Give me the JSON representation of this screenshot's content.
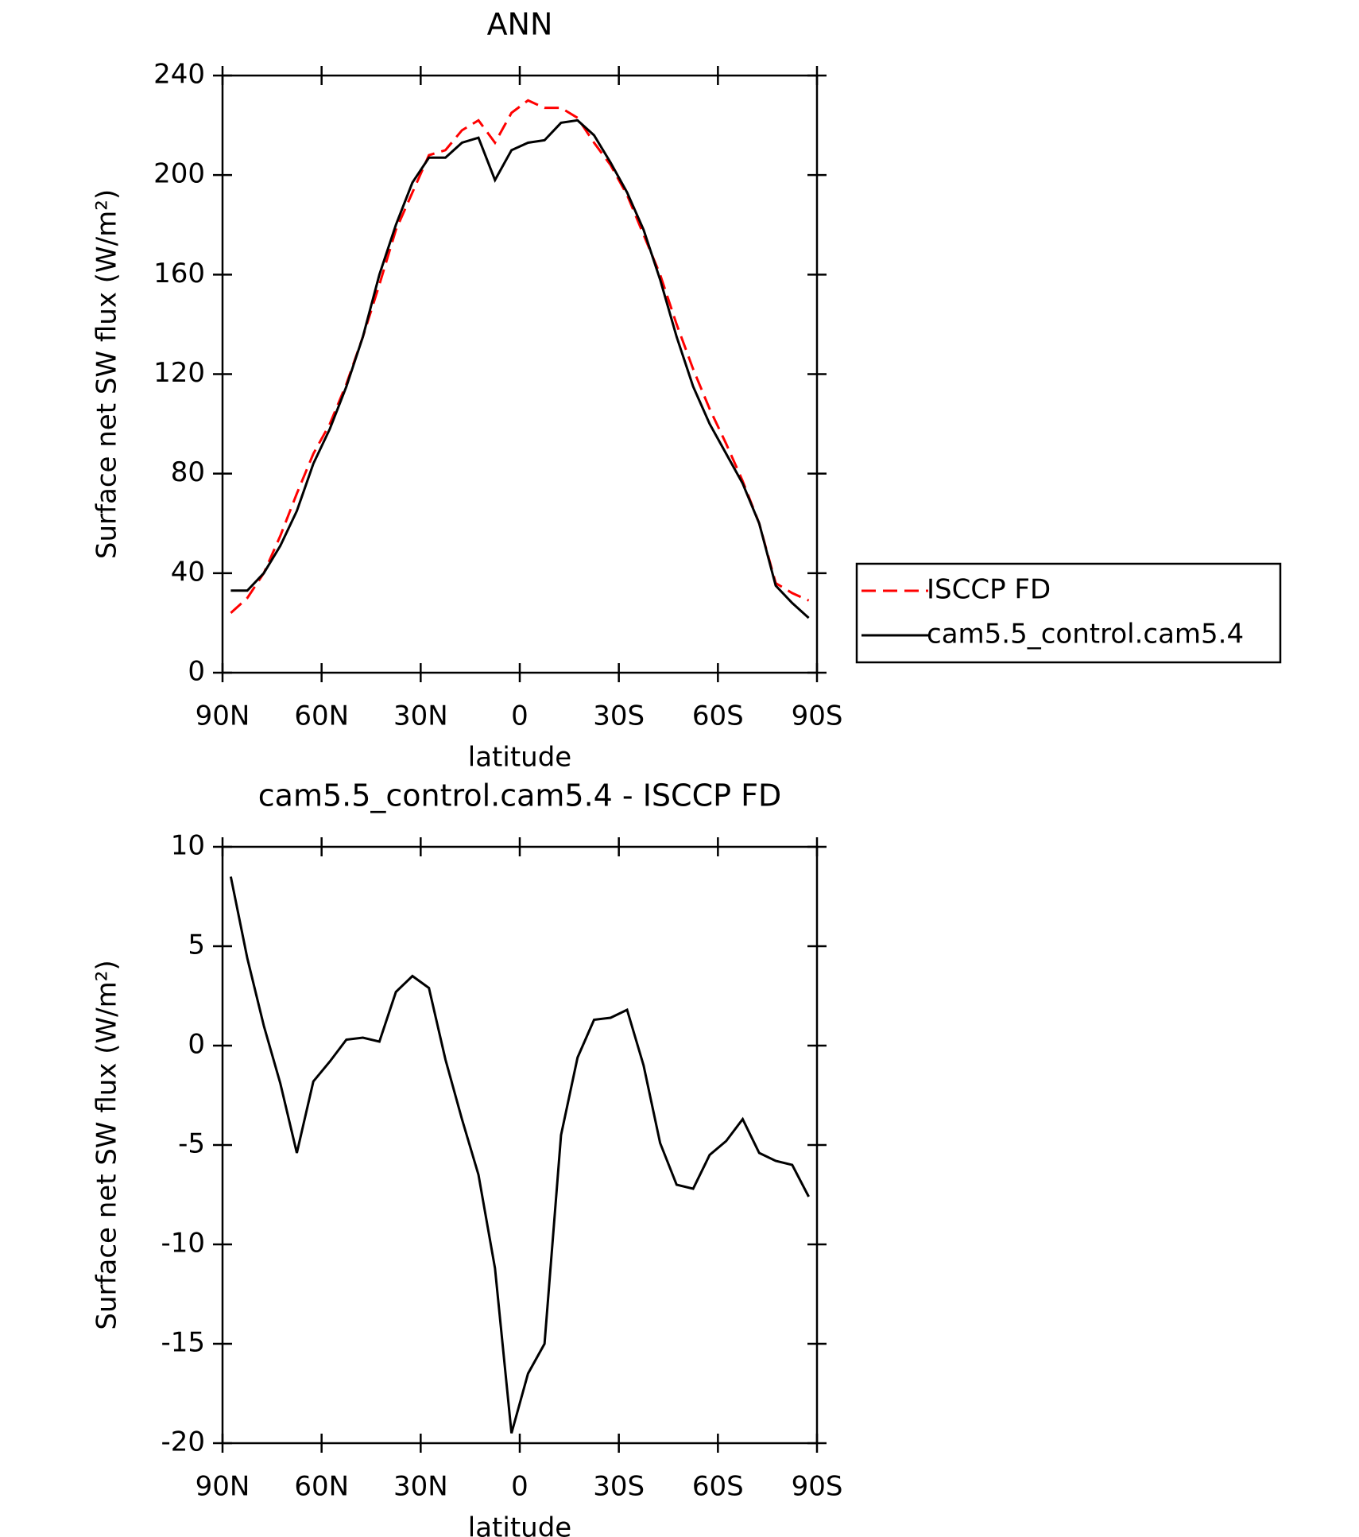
{
  "chart_data": [
    {
      "type": "line",
      "title": "ANN",
      "xlabel": "latitude",
      "ylabel": "Surface net SW flux (W/m²)",
      "x": [
        87.5,
        82.5,
        77.5,
        72.5,
        67.5,
        62.5,
        57.5,
        52.5,
        47.5,
        42.5,
        37.5,
        32.5,
        27.5,
        22.5,
        17.5,
        12.5,
        7.5,
        2.5,
        -2.5,
        -7.5,
        -12.5,
        -17.5,
        -22.5,
        -27.5,
        -32.5,
        -37.5,
        -42.5,
        -47.5,
        -52.5,
        -57.5,
        -62.5,
        -67.5,
        -72.5,
        -77.5,
        -82.5,
        -87.5
      ],
      "series": [
        {
          "name": "ISCCP FD",
          "color": "#ff0000",
          "dash": true,
          "values": [
            24,
            30,
            40,
            55,
            72,
            88,
            100,
            116,
            135,
            156,
            178,
            193,
            208,
            210,
            218,
            222,
            213,
            225,
            230,
            227,
            227,
            223,
            213,
            204,
            192,
            176,
            160,
            140,
            122,
            106,
            92,
            77,
            60,
            36,
            32,
            29
          ]
        },
        {
          "name": "cam5.5_control.cam5.4",
          "color": "#000000",
          "dash": false,
          "values": [
            33,
            33,
            40,
            51,
            65,
            84,
            98,
            115,
            135,
            160,
            180,
            197,
            207,
            207,
            213,
            215,
            198,
            210,
            213,
            214,
            221,
            222,
            216,
            205,
            193,
            178,
            158,
            135,
            115,
            100,
            88,
            76,
            60,
            35,
            28,
            22
          ]
        }
      ],
      "xlim": [
        90,
        -90
      ],
      "xticks": [
        {
          "value": 90,
          "label": "90N"
        },
        {
          "value": 60,
          "label": "60N"
        },
        {
          "value": 30,
          "label": "30N"
        },
        0,
        {
          "value": -30,
          "label": "30S"
        },
        {
          "value": -60,
          "label": "60S"
        },
        {
          "value": -90,
          "label": "90S"
        }
      ],
      "ylim": [
        0,
        240
      ],
      "yticks": [
        0,
        40,
        80,
        120,
        160,
        200,
        240
      ],
      "legend": "right"
    },
    {
      "type": "line",
      "title": "cam5.5_control.cam5.4 - ISCCP FD",
      "xlabel": "latitude",
      "ylabel": "Surface net SW flux (W/m²)",
      "x": [
        87.5,
        82.5,
        77.5,
        72.5,
        67.5,
        62.5,
        57.5,
        52.5,
        47.5,
        42.5,
        37.5,
        32.5,
        27.5,
        22.5,
        17.5,
        12.5,
        7.5,
        2.5,
        -2.5,
        -7.5,
        -12.5,
        -17.5,
        -22.5,
        -27.5,
        -32.5,
        -37.5,
        -42.5,
        -47.5,
        -52.5,
        -57.5,
        -62.5,
        -67.5,
        -72.5,
        -77.5,
        -82.5,
        -87.5
      ],
      "series": [
        {
          "color": "#000000",
          "dash": false,
          "values": [
            8.5,
            4.4,
            1.0,
            -1.9,
            -5.4,
            -1.8,
            -0.8,
            0.3,
            0.4,
            0.2,
            2.7,
            3.5,
            2.9,
            -0.7,
            -3.7,
            -6.5,
            -11.2,
            -19.5,
            -16.5,
            -15,
            -4.5,
            -0.6,
            1.3,
            1.4,
            1.8,
            -1.0,
            -4.9,
            -7.0,
            -7.2,
            -5.5,
            -4.8,
            -3.7,
            -5.4,
            -5.8,
            -6.0,
            -7.6
          ]
        }
      ],
      "xlim": [
        90,
        -90
      ],
      "xticks": [
        {
          "value": 90,
          "label": "90N"
        },
        {
          "value": 60,
          "label": "60N"
        },
        {
          "value": 30,
          "label": "30N"
        },
        0,
        {
          "value": -30,
          "label": "30S"
        },
        {
          "value": -60,
          "label": "60S"
        },
        {
          "value": -90,
          "label": "90S"
        }
      ],
      "ylim": [
        -20,
        10
      ],
      "yticks": [
        -20,
        -15,
        -10,
        -5,
        0,
        5,
        10
      ]
    }
  ]
}
